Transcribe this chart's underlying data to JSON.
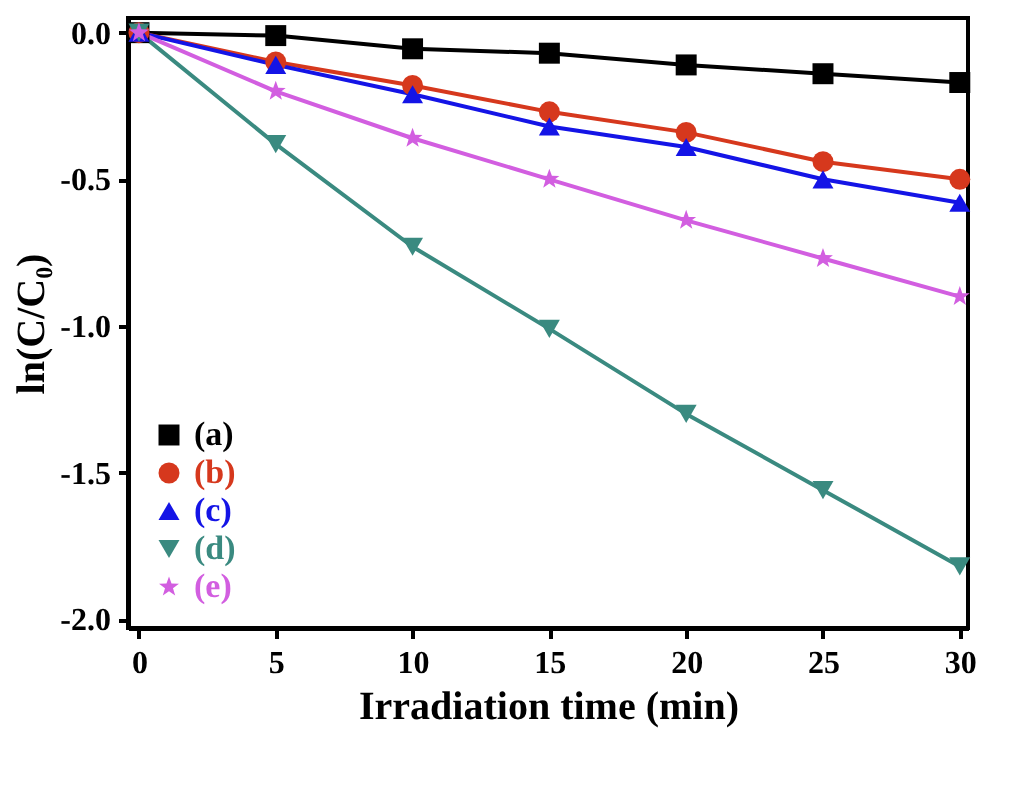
{
  "chart_data": {
    "type": "line",
    "xlabel": "Irradiation time (min)",
    "ylabel": "ln(C/C₀)",
    "x": [
      0,
      5,
      10,
      15,
      20,
      25,
      30
    ],
    "series": [
      {
        "name": "(a)",
        "color": "#000000",
        "marker": "square",
        "values": [
          0,
          -0.01,
          -0.055,
          -0.07,
          -0.11,
          -0.14,
          -0.17
        ]
      },
      {
        "name": "(b)",
        "color": "#d6381d",
        "marker": "circle",
        "values": [
          0,
          -0.1,
          -0.18,
          -0.27,
          -0.34,
          -0.44,
          -0.5
        ]
      },
      {
        "name": "(c)",
        "color": "#1414e6",
        "marker": "triangle",
        "values": [
          0,
          -0.11,
          -0.21,
          -0.32,
          -0.39,
          -0.5,
          -0.58
        ]
      },
      {
        "name": "(d)",
        "color": "#3a8a80",
        "marker": "triangle-down",
        "values": [
          0,
          -0.38,
          -0.73,
          -1.01,
          -1.3,
          -1.56,
          -1.82
        ]
      },
      {
        "name": "(e)",
        "color": "#d25ee0",
        "marker": "star",
        "values": [
          0,
          -0.2,
          -0.36,
          -0.5,
          -0.64,
          -0.77,
          -0.9
        ]
      }
    ],
    "xlim": [
      -0.4,
      30.3
    ],
    "ylim": [
      -2.03,
      0.05
    ],
    "xticks": [
      0,
      5,
      10,
      15,
      20,
      25,
      30
    ],
    "yticks": [
      {
        "value": 0,
        "label": "0.0"
      },
      {
        "value": -0.5,
        "label": "-0.5"
      },
      {
        "value": -1,
        "label": "-1.0"
      },
      {
        "value": -1.5,
        "label": "-1.5"
      },
      {
        "value": -2,
        "label": "-2.0"
      }
    ],
    "grid": false,
    "legend": "bottom left",
    "line_style": "solid"
  }
}
